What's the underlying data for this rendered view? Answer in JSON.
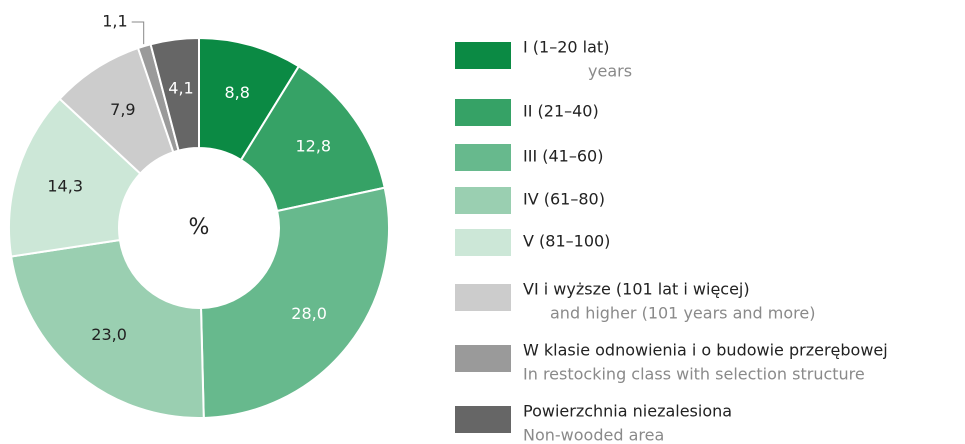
{
  "chart_data": {
    "type": "pie",
    "donut": true,
    "center_label": "%",
    "values": [
      8.8,
      12.8,
      28.0,
      23.0,
      14.3,
      7.9,
      1.1,
      4.1
    ],
    "value_labels": [
      "8,8",
      "12,8",
      "28,0",
      "23,0",
      "14,3",
      "7,9",
      "1,1",
      "4,1"
    ],
    "colors": [
      "#0b8a44",
      "#36a266",
      "#67b98d",
      "#9acfb1",
      "#cce7d7",
      "#cccccc",
      "#9a9a9a",
      "#666666"
    ],
    "legend": [
      {
        "label": "I (1–20 lat)",
        "sublabel": "years"
      },
      {
        "label": "II (21–40)"
      },
      {
        "label": "III (41–60)"
      },
      {
        "label": "IV (61–80)"
      },
      {
        "label": "V (81–100)"
      },
      {
        "label": "VI i wyższe (101 lat i więcej)",
        "sublabel": "and higher (101 years and more)"
      },
      {
        "label": "W klasie odnowienia i o budowie przerębowej",
        "sublabel": "In restocking class with selection structure"
      },
      {
        "label": "Powierzchnia niezalesiona",
        "sublabel": "Non-wooded area"
      }
    ]
  }
}
